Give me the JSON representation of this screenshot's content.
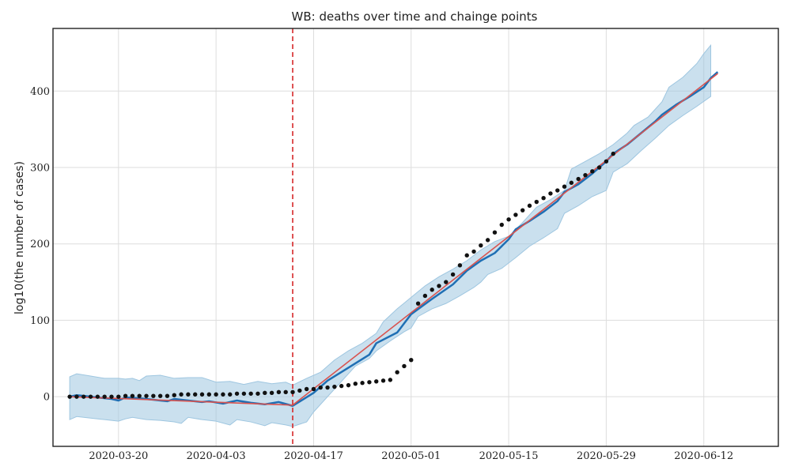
{
  "chart_data": {
    "type": "line",
    "title": "WB: deaths over time and chainge points",
    "xlabel": "",
    "ylabel": "log10(the number of cases)",
    "x_start": "2020-03-13",
    "x_ticks": [
      "2020-03-20",
      "2020-04-03",
      "2020-04-17",
      "2020-05-01",
      "2020-05-15",
      "2020-05-29",
      "2020-06-12"
    ],
    "x_tick_days": [
      7,
      21,
      35,
      49,
      63,
      77,
      91
    ],
    "xlim": [
      -2.4,
      101.7
    ],
    "y_ticks": [
      0,
      100,
      200,
      300,
      400
    ],
    "ylim": [
      -65,
      482
    ],
    "grid": true,
    "changepoint_day": 32,
    "colors": {
      "observed": "#111111",
      "forecast": "#1f6fb4",
      "trend": "#d9534f",
      "interval": "#9ec6e0",
      "changepoint": "#d62728",
      "grid": "#dddddd",
      "frame": "#222222"
    },
    "series": [
      {
        "role": "observed",
        "days": [
          0,
          1,
          2,
          3,
          4,
          5,
          6,
          7,
          8,
          9,
          10,
          11,
          12,
          13,
          14,
          15,
          16,
          17,
          18,
          19,
          20,
          21,
          22,
          23,
          24,
          25,
          26,
          27,
          28,
          29,
          30,
          31,
          32,
          33,
          34,
          35,
          36,
          37,
          38,
          39,
          40,
          41,
          42,
          43,
          44,
          45,
          46,
          47,
          48,
          49,
          50,
          51,
          52,
          53,
          54,
          55,
          56,
          57,
          58,
          59,
          60,
          61,
          62,
          63,
          64,
          65,
          66,
          67,
          68,
          69,
          70,
          71,
          72,
          73,
          74,
          75,
          76,
          77,
          78
        ],
        "values": [
          0,
          0,
          0,
          0,
          0,
          0,
          0,
          0,
          1,
          1,
          1,
          1,
          1,
          1,
          1,
          2,
          3,
          3,
          3,
          3,
          3,
          3,
          3,
          3,
          4,
          4,
          4,
          4,
          5,
          5,
          6,
          6,
          6,
          8,
          10,
          10,
          12,
          12,
          13,
          14,
          15,
          17,
          18,
          19,
          20,
          21,
          22,
          32,
          40,
          48,
          122,
          132,
          140,
          145,
          150,
          160,
          172,
          185,
          190,
          198,
          205,
          215,
          225,
          232,
          238,
          244,
          250,
          255,
          260,
          266,
          270,
          275,
          280,
          285,
          290,
          295,
          300,
          308,
          318
        ]
      },
      {
        "role": "forecast",
        "points": [
          [
            0,
            0
          ],
          [
            1,
            2
          ],
          [
            2,
            1
          ],
          [
            4,
            -1
          ],
          [
            6,
            -3
          ],
          [
            7,
            -5
          ],
          [
            8,
            -1
          ],
          [
            10,
            -2
          ],
          [
            12,
            -4
          ],
          [
            14,
            -6
          ],
          [
            15,
            -3
          ],
          [
            17,
            -5
          ],
          [
            19,
            -7
          ],
          [
            20,
            -6
          ],
          [
            22,
            -9
          ],
          [
            24,
            -5
          ],
          [
            26,
            -8
          ],
          [
            28,
            -10
          ],
          [
            30,
            -7
          ],
          [
            32,
            -12
          ],
          [
            35,
            5
          ],
          [
            37,
            21
          ],
          [
            40,
            38
          ],
          [
            43,
            55
          ],
          [
            44,
            70
          ],
          [
            47,
            84
          ],
          [
            49,
            108
          ],
          [
            52,
            128
          ],
          [
            55,
            147
          ],
          [
            57,
            165
          ],
          [
            59,
            178
          ],
          [
            61,
            188
          ],
          [
            63,
            206
          ],
          [
            64,
            219
          ],
          [
            66,
            230
          ],
          [
            68,
            242
          ],
          [
            70,
            256
          ],
          [
            71,
            268
          ],
          [
            73,
            278
          ],
          [
            75,
            292
          ],
          [
            77,
            308
          ],
          [
            78,
            318
          ],
          [
            80,
            330
          ],
          [
            82,
            345
          ],
          [
            84,
            360
          ],
          [
            85,
            369
          ],
          [
            87,
            382
          ],
          [
            89,
            393
          ],
          [
            91,
            405
          ],
          [
            92,
            417
          ],
          [
            93,
            425
          ]
        ]
      },
      {
        "role": "trend",
        "points": [
          [
            0,
            0
          ],
          [
            32,
            -11
          ],
          [
            93,
            423
          ]
        ]
      },
      {
        "role": "interval",
        "upper": [
          [
            0,
            26
          ],
          [
            1,
            30
          ],
          [
            3,
            27
          ],
          [
            5,
            24
          ],
          [
            7,
            24
          ],
          [
            8,
            23
          ],
          [
            9,
            24
          ],
          [
            10,
            21
          ],
          [
            11,
            27
          ],
          [
            13,
            28
          ],
          [
            15,
            24
          ],
          [
            17,
            25
          ],
          [
            19,
            25
          ],
          [
            21,
            19
          ],
          [
            23,
            20
          ],
          [
            25,
            16
          ],
          [
            27,
            20
          ],
          [
            29,
            17
          ],
          [
            31,
            19
          ],
          [
            32,
            15
          ],
          [
            34,
            24
          ],
          [
            36,
            32
          ],
          [
            38,
            48
          ],
          [
            40,
            60
          ],
          [
            42,
            70
          ],
          [
            44,
            83
          ],
          [
            45,
            98
          ],
          [
            47,
            115
          ],
          [
            49,
            130
          ],
          [
            51,
            145
          ],
          [
            53,
            157
          ],
          [
            55,
            167
          ],
          [
            57,
            178
          ],
          [
            59,
            192
          ],
          [
            61,
            203
          ],
          [
            63,
            210
          ],
          [
            65,
            228
          ],
          [
            67,
            248
          ],
          [
            69,
            258
          ],
          [
            71,
            270
          ],
          [
            72,
            298
          ],
          [
            74,
            308
          ],
          [
            76,
            318
          ],
          [
            78,
            330
          ],
          [
            80,
            345
          ],
          [
            81,
            355
          ],
          [
            83,
            366
          ],
          [
            85,
            386
          ],
          [
            86,
            405
          ],
          [
            88,
            418
          ],
          [
            90,
            436
          ],
          [
            91,
            449
          ],
          [
            92,
            460
          ]
        ],
        "lower": [
          [
            0,
            -30
          ],
          [
            1,
            -26
          ],
          [
            3,
            -28
          ],
          [
            5,
            -30
          ],
          [
            7,
            -32
          ],
          [
            8,
            -29
          ],
          [
            9,
            -27
          ],
          [
            11,
            -30
          ],
          [
            13,
            -31
          ],
          [
            15,
            -33
          ],
          [
            16,
            -35
          ],
          [
            17,
            -27
          ],
          [
            19,
            -30
          ],
          [
            21,
            -32
          ],
          [
            23,
            -37
          ],
          [
            24,
            -30
          ],
          [
            26,
            -33
          ],
          [
            28,
            -38
          ],
          [
            29,
            -34
          ],
          [
            31,
            -37
          ],
          [
            32,
            -39
          ],
          [
            34,
            -33
          ],
          [
            35,
            -20
          ],
          [
            37,
            0
          ],
          [
            39,
            20
          ],
          [
            41,
            40
          ],
          [
            43,
            50
          ],
          [
            44,
            60
          ],
          [
            46,
            73
          ],
          [
            48,
            85
          ],
          [
            49,
            90
          ],
          [
            50,
            105
          ],
          [
            52,
            115
          ],
          [
            54,
            122
          ],
          [
            56,
            132
          ],
          [
            58,
            143
          ],
          [
            59,
            150
          ],
          [
            60,
            160
          ],
          [
            62,
            168
          ],
          [
            64,
            182
          ],
          [
            66,
            197
          ],
          [
            68,
            208
          ],
          [
            70,
            220
          ],
          [
            71,
            240
          ],
          [
            73,
            250
          ],
          [
            75,
            262
          ],
          [
            77,
            270
          ],
          [
            78,
            294
          ],
          [
            80,
            305
          ],
          [
            82,
            322
          ],
          [
            84,
            338
          ],
          [
            86,
            355
          ],
          [
            88,
            368
          ],
          [
            90,
            380
          ],
          [
            92,
            393
          ]
        ]
      }
    ]
  }
}
